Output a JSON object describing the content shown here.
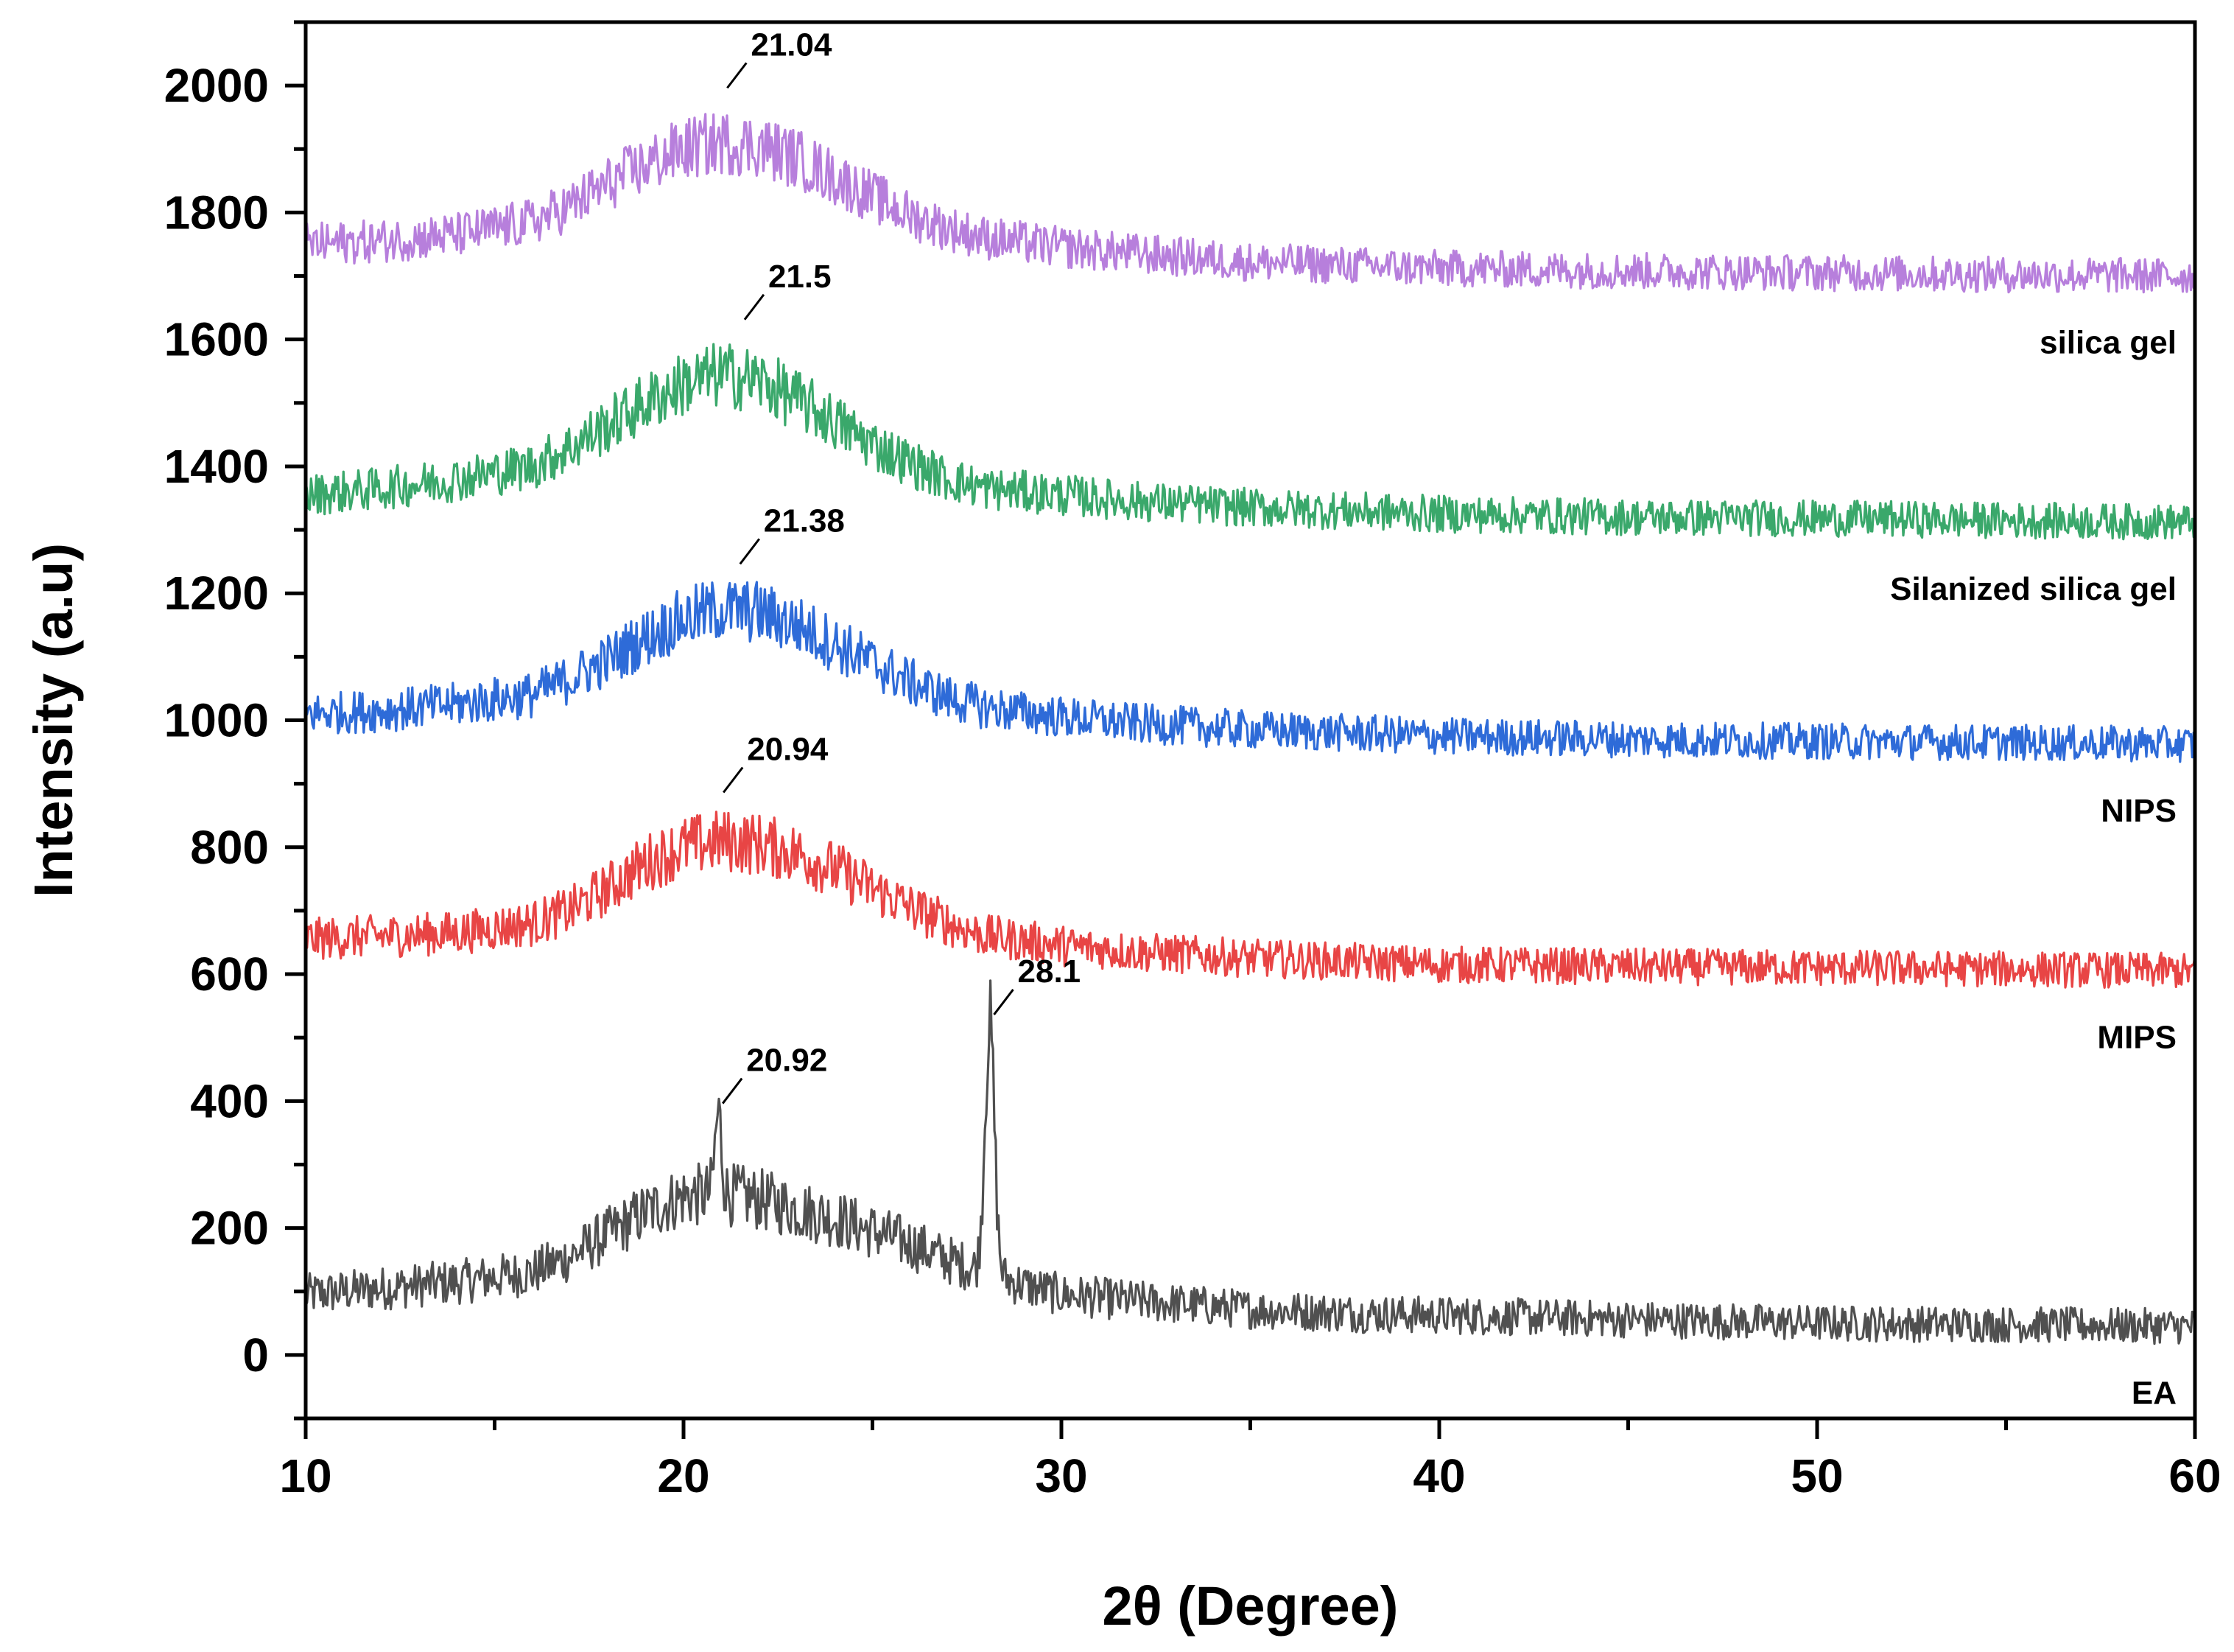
{
  "chart_data": {
    "type": "line",
    "title": "",
    "xlabel": "2θ (Degree)",
    "ylabel": "Intensity (a.u)",
    "xlim": [
      10,
      60
    ],
    "ylim": [
      -100,
      2100
    ],
    "x_ticks": [
      10,
      20,
      30,
      40,
      50,
      60
    ],
    "y_ticks": [
      0,
      200,
      400,
      600,
      800,
      1000,
      1200,
      1400,
      1600,
      1800,
      2000
    ],
    "grid": false,
    "legend": "none",
    "series": [
      {
        "name": "EA",
        "color": "#505050",
        "label_text": "EA",
        "profile": [
          [
            10,
            95
          ],
          [
            12,
            105
          ],
          [
            14,
            115
          ],
          [
            16,
            130
          ],
          [
            17,
            155
          ],
          [
            18,
            190
          ],
          [
            19,
            225
          ],
          [
            20,
            250
          ],
          [
            21,
            255
          ],
          [
            22,
            245
          ],
          [
            23,
            230
          ],
          [
            24,
            215
          ],
          [
            25,
            195
          ],
          [
            26,
            175
          ],
          [
            27,
            150
          ],
          [
            28,
            130
          ],
          [
            29,
            110
          ],
          [
            30,
            95
          ],
          [
            32,
            85
          ],
          [
            35,
            72
          ],
          [
            38,
            65
          ],
          [
            42,
            60
          ],
          [
            46,
            55
          ],
          [
            50,
            50
          ],
          [
            55,
            48
          ],
          [
            60,
            45
          ]
        ],
        "peaks": [
          {
            "x": 20.92,
            "y": 380,
            "label": "20.92",
            "width": 0.12
          },
          {
            "x": 28.1,
            "y": 520,
            "label": "28.1",
            "width": 0.18
          }
        ]
      },
      {
        "name": "MIPS",
        "color": "#e84545",
        "label_text": "MIPS",
        "profile": [
          [
            10,
            655
          ],
          [
            12,
            660
          ],
          [
            14,
            665
          ],
          [
            16,
            680
          ],
          [
            17,
            700
          ],
          [
            18,
            735
          ],
          [
            19,
            775
          ],
          [
            20,
            800
          ],
          [
            21,
            810
          ],
          [
            22,
            805
          ],
          [
            23,
            790
          ],
          [
            24,
            765
          ],
          [
            25,
            735
          ],
          [
            26,
            705
          ],
          [
            27,
            680
          ],
          [
            28,
            660
          ],
          [
            30,
            645
          ],
          [
            32,
            635
          ],
          [
            35,
            625
          ],
          [
            40,
            615
          ],
          [
            45,
            612
          ],
          [
            50,
            610
          ],
          [
            55,
            608
          ],
          [
            60,
            605
          ]
        ],
        "peaks": [
          {
            "x": 20.94,
            "y": 870,
            "label": "20.94",
            "width": 0
          }
        ]
      },
      {
        "name": "NIPS",
        "color": "#2e6bd8",
        "label_text": "NIPS",
        "profile": [
          [
            10,
            1010
          ],
          [
            12,
            1015
          ],
          [
            14,
            1025
          ],
          [
            16,
            1040
          ],
          [
            17,
            1065
          ],
          [
            18,
            1095
          ],
          [
            19,
            1130
          ],
          [
            20,
            1160
          ],
          [
            21,
            1175
          ],
          [
            22,
            1170
          ],
          [
            23,
            1150
          ],
          [
            24,
            1120
          ],
          [
            25,
            1090
          ],
          [
            26,
            1060
          ],
          [
            27,
            1035
          ],
          [
            28,
            1020
          ],
          [
            30,
            1005
          ],
          [
            32,
            995
          ],
          [
            35,
            985
          ],
          [
            40,
            975
          ],
          [
            45,
            970
          ],
          [
            50,
            967
          ],
          [
            55,
            965
          ],
          [
            60,
            962
          ]
        ],
        "peaks": [
          {
            "x": 21.38,
            "y": 1230,
            "label": "21.38",
            "width": 0
          }
        ]
      },
      {
        "name": "Silanized silica gel",
        "color": "#3aa86b",
        "label_text": "Silanized silica gel",
        "profile": [
          [
            10,
            1355
          ],
          [
            12,
            1365
          ],
          [
            14,
            1380
          ],
          [
            16,
            1400
          ],
          [
            17,
            1430
          ],
          [
            18,
            1465
          ],
          [
            19,
            1500
          ],
          [
            20,
            1530
          ],
          [
            21,
            1545
          ],
          [
            22,
            1535
          ],
          [
            23,
            1505
          ],
          [
            24,
            1470
          ],
          [
            25,
            1435
          ],
          [
            26,
            1405
          ],
          [
            27,
            1380
          ],
          [
            28,
            1365
          ],
          [
            30,
            1355
          ],
          [
            32,
            1345
          ],
          [
            35,
            1335
          ],
          [
            40,
            1325
          ],
          [
            45,
            1320
          ],
          [
            50,
            1318
          ],
          [
            55,
            1315
          ],
          [
            60,
            1312
          ]
        ],
        "peaks": [
          {
            "x": 21.5,
            "y": 1615,
            "label": "21.5",
            "width": 0
          }
        ]
      },
      {
        "name": "silica gel",
        "color": "#b77fdc",
        "label_text": "silica gel",
        "profile": [
          [
            10,
            1750
          ],
          [
            12,
            1755
          ],
          [
            14,
            1765
          ],
          [
            16,
            1785
          ],
          [
            17,
            1810
          ],
          [
            18,
            1845
          ],
          [
            19,
            1875
          ],
          [
            20,
            1900
          ],
          [
            21,
            1910
          ],
          [
            22,
            1905
          ],
          [
            23,
            1885
          ],
          [
            24,
            1855
          ],
          [
            25,
            1825
          ],
          [
            26,
            1795
          ],
          [
            27,
            1775
          ],
          [
            28,
            1760
          ],
          [
            30,
            1745
          ],
          [
            32,
            1735
          ],
          [
            35,
            1722
          ],
          [
            40,
            1712
          ],
          [
            45,
            1708
          ],
          [
            50,
            1705
          ],
          [
            55,
            1702
          ],
          [
            60,
            1700
          ]
        ],
        "peaks": [
          {
            "x": 21.04,
            "y": 1980,
            "label": "21.04",
            "width": 0
          }
        ]
      }
    ],
    "noise_amplitude": 28,
    "points_per_series": 1400
  }
}
